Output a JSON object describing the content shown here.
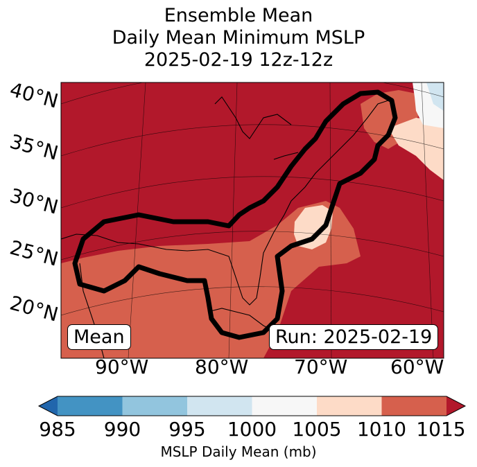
{
  "title_lines": [
    "Ensemble Mean",
    "Daily Mean Minimum MSLP",
    "2025-02-19 12z-12z"
  ],
  "lat_labels": [
    "40°N",
    "35°N",
    "30°N",
    "25°N",
    "20°N"
  ],
  "lon_labels": [
    "90°W",
    "80°W",
    "70°W",
    "60°W"
  ],
  "colorbar": {
    "ticks": [
      "985",
      "990",
      "995",
      "1000",
      "1005",
      "1010",
      "1015"
    ],
    "colors": [
      "#2166ac",
      "#4393c3",
      "#92c5de",
      "#d1e5f0",
      "#f7f7f7",
      "#fddbc7",
      "#d6604d",
      "#b2182b"
    ],
    "label": "MSLP Daily Mean (mb)"
  },
  "panel_labels": {
    "left": "Mean",
    "right": "Run: 2025-02-19"
  },
  "colors": {
    "ocean_high": "#b2182b",
    "mid": "#d6604d",
    "light": "#fddbc7",
    "contour": "#000000"
  }
}
